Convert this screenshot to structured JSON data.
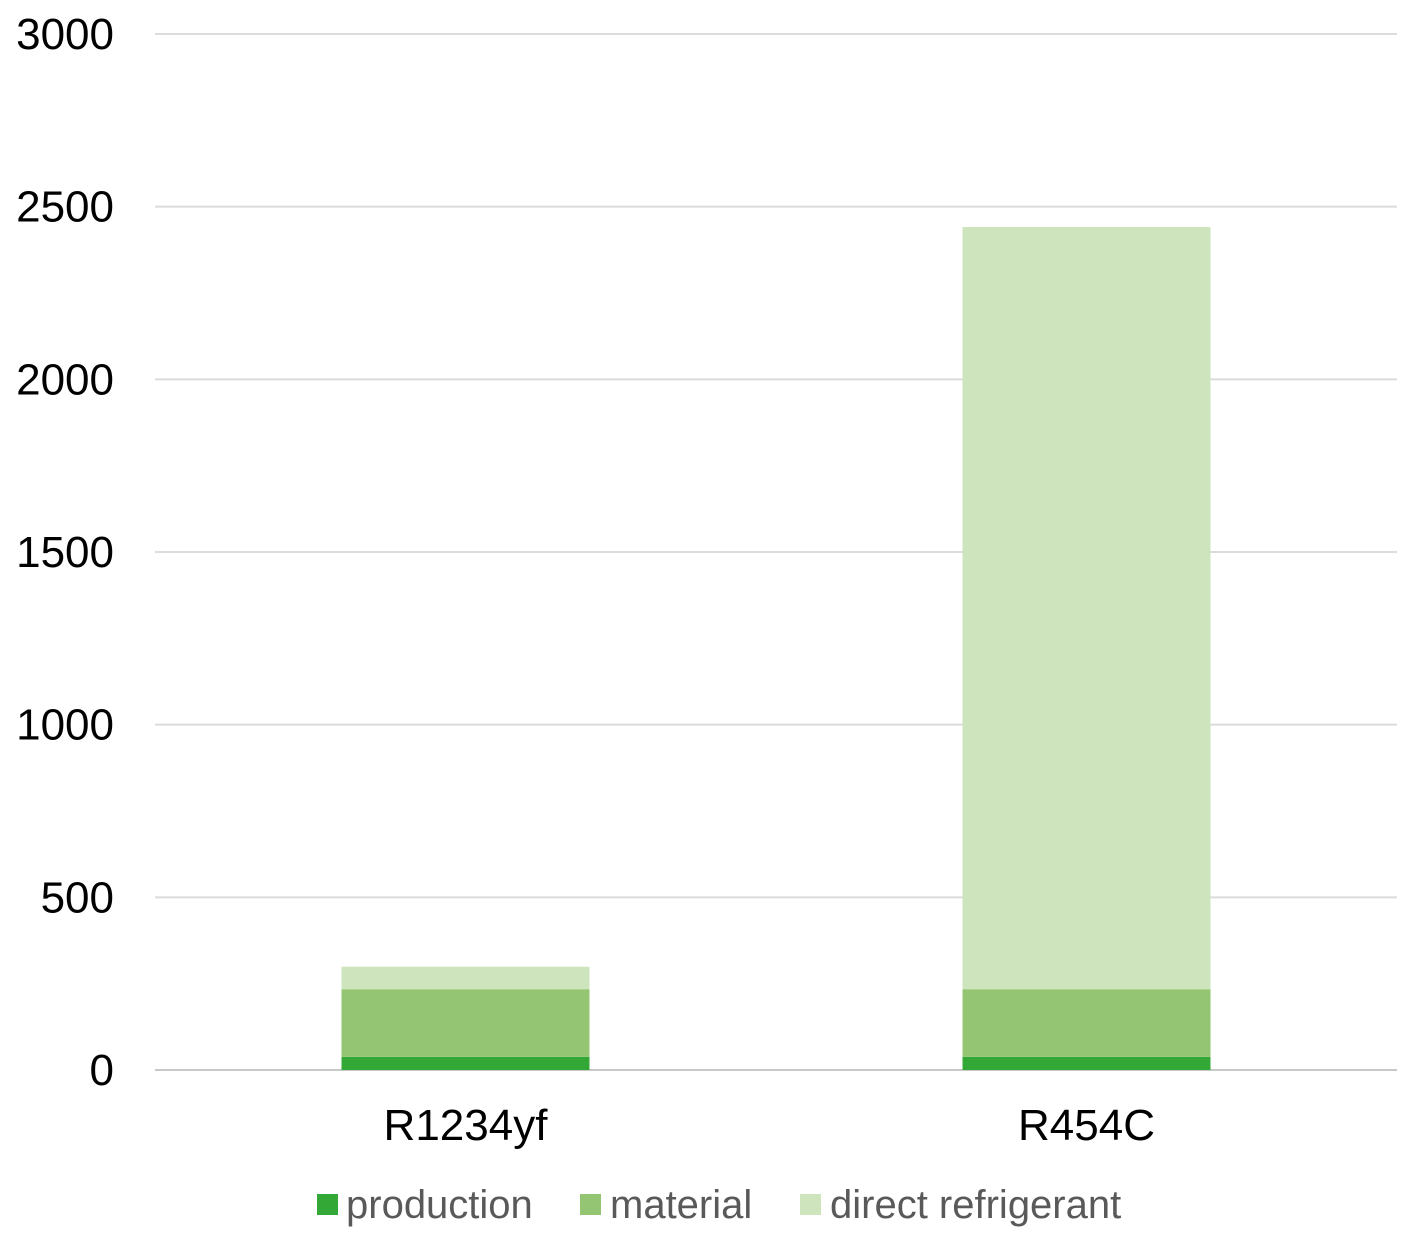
{
  "chart_data": {
    "type": "bar",
    "stacked": true,
    "categories": [
      "R1234yf",
      "R454C"
    ],
    "series": [
      {
        "name": "production",
        "values": [
          38,
          38
        ],
        "color": "#33a837"
      },
      {
        "name": "material",
        "values": [
          196,
          196
        ],
        "color": "#93c572"
      },
      {
        "name": "direct refrigerant",
        "values": [
          65,
          2207
        ],
        "color": "#cde4bc"
      }
    ],
    "ylim": [
      0,
      3000
    ],
    "yticks": [
      "0",
      "500",
      "1000",
      "1500",
      "2000",
      "2500",
      "3000"
    ],
    "grid": true,
    "legend_position": "bottom",
    "title": "",
    "xlabel": "",
    "ylabel": ""
  }
}
